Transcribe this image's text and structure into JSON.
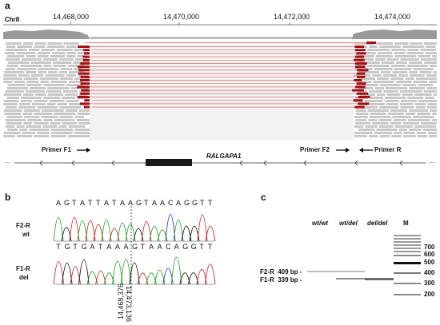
{
  "panel_a": {
    "letter": "a",
    "chrom": "Chr8",
    "coords": [
      "14,468,000",
      "14,470,000",
      "14,472,000",
      "14,474,000"
    ],
    "primer_f1": "Primer F1",
    "primer_f2": "Primer F2",
    "primer_r": "Primer R",
    "gene": "RALGAPA1"
  },
  "panel_b": {
    "letter": "b",
    "wt_seq": [
      "A",
      "G",
      "T",
      "A",
      "T",
      "T",
      "A",
      "T",
      "A",
      "A",
      "G",
      "T",
      "A",
      "A",
      "C",
      "A",
      "G",
      "G",
      "T",
      "T"
    ],
    "del_seq": [
      "T",
      "G",
      "T",
      "G",
      "A",
      "T",
      "A",
      "A",
      "A",
      "G",
      "T",
      "A",
      "A",
      "C",
      "A",
      "G",
      "G",
      "T",
      "T"
    ],
    "wt_label_1": "F2-R",
    "wt_label_2": "wt",
    "del_label_1": "F1-R",
    "del_label_2": "del",
    "breakpoint_1": "14,468,376",
    "breakpoint_2": "14,473,136"
  },
  "panel_c": {
    "letter": "c",
    "lanes": [
      "wt/wt",
      "wt/del",
      "del/del"
    ],
    "marker_lane": "M",
    "band_f2": "F2-R  409 bp -",
    "band_f1": "F1-R  339 bp -",
    "marker_sizes": [
      "700",
      "600",
      "500",
      "400",
      "300",
      "200"
    ]
  },
  "colors": {
    "read": "#c8c8c8",
    "split_read": "#a30f12",
    "link_line": "#e06a6a",
    "trace_a": "#1ea31e",
    "trace_c": "#2b2bd0",
    "trace_g": "#111111",
    "trace_t": "#e01b1b"
  }
}
